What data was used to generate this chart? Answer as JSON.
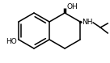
{
  "bg_color": "#ffffff",
  "line_color": "#000000",
  "figsize": [
    1.36,
    0.78
  ],
  "dpi": 100,
  "bond_color": "#000000",
  "label_color": "#000000",
  "xlim": [
    0,
    136
  ],
  "ylim": [
    0,
    78
  ]
}
